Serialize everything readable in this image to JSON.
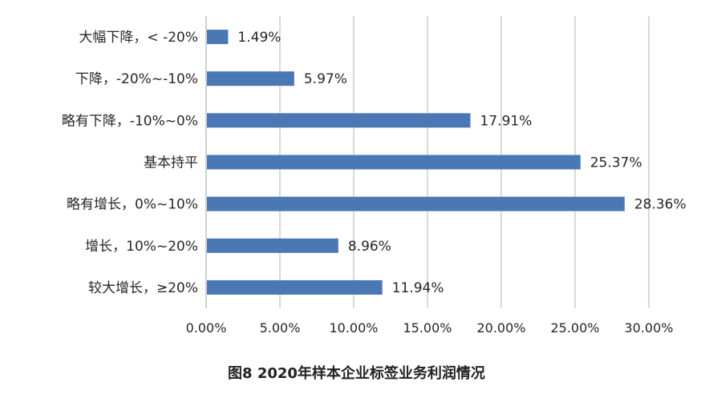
{
  "chart_data": {
    "type": "bar",
    "orientation": "horizontal",
    "categories": [
      "大幅下降，< -20%",
      "下降，-20%~-10%",
      "略有下降，-10%~0%",
      "基本持平",
      "略有增长，0%~10%",
      "增长，10%~20%",
      "较大增长，≥20%"
    ],
    "values": [
      1.49,
      5.97,
      17.91,
      25.37,
      28.36,
      8.96,
      11.94
    ],
    "value_labels": [
      "1.49%",
      "5.97%",
      "17.91%",
      "25.37%",
      "28.36%",
      "8.96%",
      "11.94%"
    ],
    "x_ticks": [
      0,
      5,
      10,
      15,
      20,
      25,
      30
    ],
    "x_tick_labels": [
      "0.00%",
      "5.00%",
      "10.00%",
      "15.00%",
      "20.00%",
      "25.00%",
      "30.00%"
    ],
    "xlim": [
      0,
      30
    ],
    "grid": "vertical",
    "legend": "none",
    "title": "图8 2020年样本企业标签业务利润情况",
    "xlabel": "",
    "ylabel": "",
    "colors": {
      "bar": "#4a78b5",
      "grid": "#d9d9d9",
      "axis": "#bfbfbf"
    }
  }
}
